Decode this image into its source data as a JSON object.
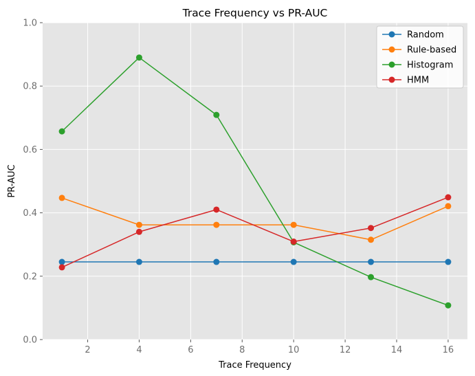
{
  "chart_data": {
    "type": "line",
    "title": "Trace Frequency vs PR-AUC",
    "xlabel": "Trace Frequency",
    "ylabel": "PR-AUC",
    "x": [
      1,
      4,
      7,
      10,
      13,
      16
    ],
    "xlim": [
      0.25,
      16.75
    ],
    "ylim": [
      0.0,
      1.0
    ],
    "xticks": [
      2,
      4,
      6,
      8,
      10,
      12,
      14,
      16
    ],
    "yticks": [
      0.0,
      0.2,
      0.4,
      0.6,
      0.8,
      1.0
    ],
    "xtick_labels": [
      "2",
      "4",
      "6",
      "8",
      "10",
      "12",
      "14",
      "16"
    ],
    "ytick_labels": [
      "0.0",
      "0.2",
      "0.4",
      "0.6",
      "0.8",
      "1.0"
    ],
    "grid": true,
    "legend_position": "top-right",
    "series": [
      {
        "name": "Random",
        "color": "#1f77b4",
        "values": [
          0.245,
          0.245,
          0.245,
          0.245,
          0.245,
          0.245
        ]
      },
      {
        "name": "Rule-based",
        "color": "#ff7f0e",
        "values": [
          0.447,
          0.362,
          0.362,
          0.362,
          0.315,
          0.421
        ]
      },
      {
        "name": "Histogram",
        "color": "#2ca02c",
        "values": [
          0.657,
          0.89,
          0.709,
          0.307,
          0.197,
          0.108
        ]
      },
      {
        "name": "HMM",
        "color": "#d62728",
        "values": [
          0.228,
          0.34,
          0.41,
          0.309,
          0.352,
          0.449
        ]
      }
    ]
  }
}
